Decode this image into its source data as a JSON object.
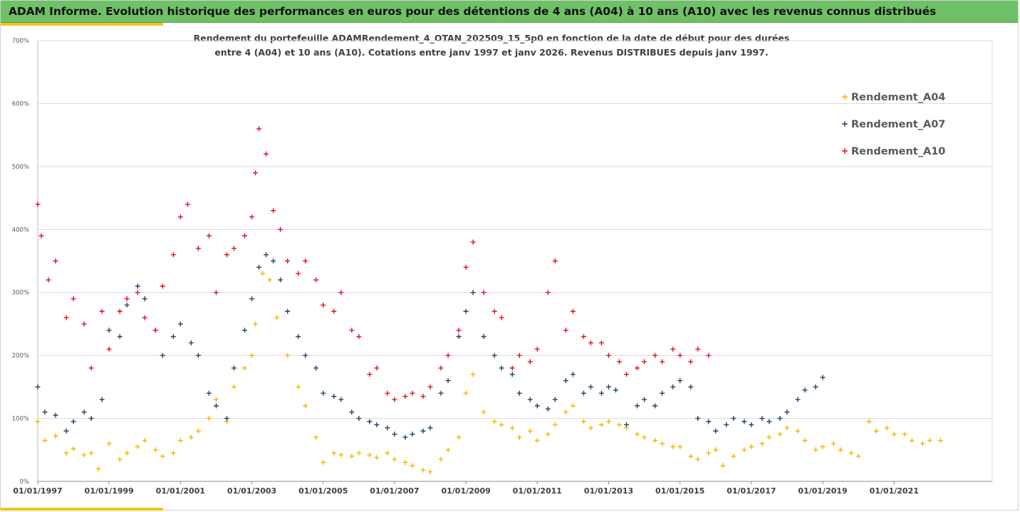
{
  "banner": {
    "title": "ADAM Informe. Evolution historique des performances en euros pour des détentions de 4 ans (A04) à 10 ans (A10) avec les revenus connus distribués",
    "background": "#6fc167",
    "accent": "#f2c418"
  },
  "chart_data": {
    "type": "scatter",
    "title_line1": "Rendement du portefeuille ADAMRendement_4_OTAN_202509_15_5p0  en fonction de la date de début pour des durées",
    "title_line2": "entre 4 (A04) et 10 ans (A10). Cotations entre janv 1997 et janv 2026. Revenus DISTRIBUES depuis janv 1997.",
    "xlabel": "",
    "ylabel": "",
    "xlim": [
      1997.0,
      2023.75
    ],
    "ylim": [
      0,
      700
    ],
    "y_ticks": [
      0,
      100,
      200,
      300,
      400,
      500,
      600,
      700
    ],
    "y_tick_labels": [
      "0%",
      "100%",
      "200%",
      "300%",
      "400%",
      "500%",
      "600%",
      "700%"
    ],
    "x_ticks": [
      1997,
      1999,
      2001,
      2003,
      2005,
      2007,
      2009,
      2011,
      2013,
      2015,
      2017,
      2019,
      2021
    ],
    "x_tick_labels": [
      "01/01/1997",
      "01/01/1999",
      "01/01/2001",
      "01/01/2003",
      "01/01/2005",
      "01/01/2007",
      "01/01/2009",
      "01/01/2011",
      "01/01/2013",
      "01/01/2015",
      "01/01/2017",
      "01/01/2019",
      "01/01/2021"
    ],
    "grid": true,
    "legend_position": "top-right",
    "marker": "+",
    "series": [
      {
        "name": "Rendement_A04",
        "color": "#f5b800",
        "x": [
          1997.0,
          1997.2,
          1997.5,
          1997.8,
          1998.0,
          1998.3,
          1998.5,
          1998.7,
          1999.0,
          1999.3,
          1999.5,
          1999.8,
          2000.0,
          2000.3,
          2000.5,
          2000.8,
          2001.0,
          2001.3,
          2001.5,
          2001.8,
          2002.0,
          2002.3,
          2002.5,
          2002.8,
          2003.0,
          2003.1,
          2003.3,
          2003.5,
          2003.7,
          2004.0,
          2004.3,
          2004.5,
          2004.8,
          2005.0,
          2005.3,
          2005.5,
          2005.8,
          2006.0,
          2006.3,
          2006.5,
          2006.8,
          2007.0,
          2007.3,
          2007.5,
          2007.8,
          2008.0,
          2008.3,
          2008.5,
          2008.8,
          2009.0,
          2009.2,
          2009.5,
          2009.8,
          2010.0,
          2010.3,
          2010.5,
          2010.8,
          2011.0,
          2011.3,
          2011.5,
          2011.8,
          2012.0,
          2012.3,
          2012.5,
          2012.8,
          2013.0,
          2013.3,
          2013.5,
          2013.8,
          2014.0,
          2014.3,
          2014.5,
          2014.8,
          2015.0,
          2015.3,
          2015.5,
          2015.8,
          2016.0,
          2016.2,
          2016.5,
          2016.8,
          2017.0,
          2017.3,
          2017.5,
          2017.8,
          2018.0,
          2018.3,
          2018.5,
          2018.8,
          2019.0,
          2019.3,
          2019.5,
          2019.8,
          2020.0,
          2020.3,
          2020.5,
          2020.8,
          2021.0,
          2021.3,
          2021.5,
          2021.8,
          2022.0,
          2022.3
        ],
        "values": [
          95,
          65,
          72,
          45,
          52,
          42,
          45,
          20,
          60,
          35,
          45,
          55,
          65,
          50,
          40,
          45,
          65,
          70,
          80,
          100,
          130,
          95,
          150,
          180,
          200,
          250,
          330,
          320,
          260,
          200,
          150,
          120,
          70,
          30,
          45,
          42,
          40,
          45,
          42,
          38,
          45,
          35,
          30,
          25,
          18,
          15,
          35,
          50,
          70,
          140,
          170,
          110,
          95,
          90,
          85,
          70,
          80,
          65,
          75,
          90,
          110,
          120,
          95,
          85,
          90,
          95,
          90,
          85,
          75,
          70,
          65,
          60,
          55,
          55,
          40,
          35,
          45,
          50,
          25,
          40,
          50,
          55,
          60,
          70,
          75,
          85,
          80,
          65,
          50,
          55,
          60,
          50,
          45,
          40,
          95,
          80,
          85,
          75,
          75,
          65,
          60,
          65,
          65
        ]
      },
      {
        "name": "Rendement_A07",
        "color": "#23416b",
        "x": [
          1997.0,
          1997.2,
          1997.5,
          1997.8,
          1998.0,
          1998.3,
          1998.5,
          1998.8,
          1999.0,
          1999.3,
          1999.5,
          1999.8,
          2000.0,
          2000.3,
          2000.5,
          2000.8,
          2001.0,
          2001.3,
          2001.5,
          2001.8,
          2002.0,
          2002.3,
          2002.5,
          2002.8,
          2003.0,
          2003.2,
          2003.4,
          2003.6,
          2003.8,
          2004.0,
          2004.3,
          2004.5,
          2004.8,
          2005.0,
          2005.3,
          2005.5,
          2005.8,
          2006.0,
          2006.3,
          2006.5,
          2006.8,
          2007.0,
          2007.3,
          2007.5,
          2007.8,
          2008.0,
          2008.3,
          2008.5,
          2008.8,
          2009.0,
          2009.2,
          2009.5,
          2009.8,
          2010.0,
          2010.3,
          2010.5,
          2010.8,
          2011.0,
          2011.3,
          2011.5,
          2011.8,
          2012.0,
          2012.3,
          2012.5,
          2012.8,
          2013.0,
          2013.2,
          2013.5,
          2013.8,
          2014.0,
          2014.3,
          2014.5,
          2014.8,
          2015.0,
          2015.3,
          2015.5,
          2015.8,
          2016.0,
          2016.3,
          2016.5,
          2016.8,
          2017.0,
          2017.3,
          2017.5,
          2017.8,
          2018.0,
          2018.3,
          2018.5,
          2018.8,
          2019.0
        ],
        "values": [
          150,
          110,
          105,
          80,
          95,
          110,
          100,
          130,
          240,
          230,
          280,
          310,
          290,
          240,
          200,
          230,
          250,
          220,
          200,
          140,
          120,
          100,
          180,
          240,
          290,
          340,
          360,
          350,
          320,
          270,
          230,
          200,
          180,
          140,
          135,
          130,
          110,
          100,
          95,
          90,
          85,
          75,
          70,
          75,
          80,
          85,
          140,
          160,
          230,
          270,
          300,
          230,
          200,
          180,
          170,
          140,
          130,
          120,
          115,
          130,
          160,
          170,
          140,
          150,
          140,
          150,
          145,
          90,
          120,
          130,
          120,
          140,
          150,
          160,
          150,
          100,
          95,
          80,
          90,
          100,
          95,
          90,
          100,
          95,
          100,
          110,
          130,
          145,
          150,
          165
        ]
      },
      {
        "name": "Rendement_A10",
        "color": "#e0141e",
        "x": [
          1997.0,
          1997.1,
          1997.3,
          1997.5,
          1997.8,
          1998.0,
          1998.3,
          1998.5,
          1998.8,
          1999.0,
          1999.3,
          1999.5,
          1999.8,
          2000.0,
          2000.3,
          2000.5,
          2000.8,
          2001.0,
          2001.2,
          2001.5,
          2001.8,
          2002.0,
          2002.3,
          2002.5,
          2002.8,
          2003.0,
          2003.1,
          2003.2,
          2003.4,
          2003.6,
          2003.8,
          2004.0,
          2004.3,
          2004.5,
          2004.8,
          2005.0,
          2005.3,
          2005.5,
          2005.8,
          2006.0,
          2006.3,
          2006.5,
          2006.8,
          2007.0,
          2007.3,
          2007.5,
          2007.8,
          2008.0,
          2008.3,
          2008.5,
          2008.8,
          2009.0,
          2009.2,
          2009.5,
          2009.8,
          2010.0,
          2010.3,
          2010.5,
          2010.8,
          2011.0,
          2011.3,
          2011.5,
          2011.8,
          2012.0,
          2012.3,
          2012.5,
          2012.8,
          2013.0,
          2013.3,
          2013.5,
          2013.8,
          2014.0,
          2014.3,
          2014.5,
          2014.8,
          2015.0,
          2015.3,
          2015.5,
          2015.8
        ],
        "values": [
          440,
          390,
          320,
          350,
          260,
          290,
          250,
          180,
          270,
          210,
          270,
          290,
          300,
          260,
          240,
          310,
          360,
          420,
          440,
          370,
          390,
          300,
          360,
          370,
          390,
          420,
          490,
          560,
          520,
          430,
          400,
          350,
          330,
          350,
          320,
          280,
          270,
          300,
          240,
          230,
          170,
          180,
          140,
          130,
          135,
          140,
          135,
          150,
          180,
          200,
          240,
          340,
          380,
          300,
          270,
          260,
          180,
          200,
          190,
          210,
          300,
          350,
          240,
          270,
          230,
          220,
          220,
          200,
          190,
          170,
          180,
          190,
          200,
          190,
          210,
          200,
          190,
          210,
          200
        ]
      }
    ]
  }
}
